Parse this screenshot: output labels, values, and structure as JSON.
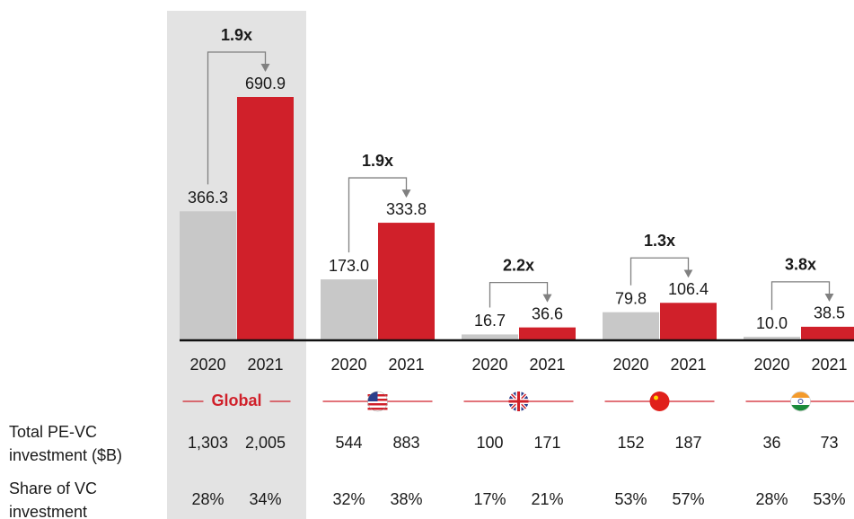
{
  "chart_data": {
    "type": "bar",
    "categories": [
      "Global",
      null,
      null,
      null,
      null
    ],
    "series": [
      {
        "name": "2020",
        "color": "#c8c8c8",
        "values": [
          366.3,
          173.0,
          16.7,
          79.8,
          10.0
        ],
        "value_labels": [
          "366.3",
          "173.0",
          "16.7",
          "79.8",
          "10.0"
        ]
      },
      {
        "name": "2021",
        "color": "#d0202a",
        "values": [
          690.9,
          333.8,
          36.6,
          106.4,
          38.5
        ]
      }
    ],
    "annotations": [
      "1.9x",
      "1.9x",
      "2.2x",
      "1.3x",
      "3.8x"
    ],
    "table": {
      "rows": [
        {
          "label": [
            "Total PE-VC",
            "investment ($B)"
          ],
          "cells": [
            "1,303",
            "2,005",
            "544",
            "883",
            "100",
            "171",
            "152",
            "187",
            "36",
            "73"
          ]
        },
        {
          "label": [
            "Share of VC",
            "investment"
          ],
          "cells": [
            "28%",
            "34%",
            "32%",
            "38%",
            "17%",
            "21%",
            "53%",
            "57%",
            "28%",
            "53%"
          ]
        }
      ]
    }
  }
}
